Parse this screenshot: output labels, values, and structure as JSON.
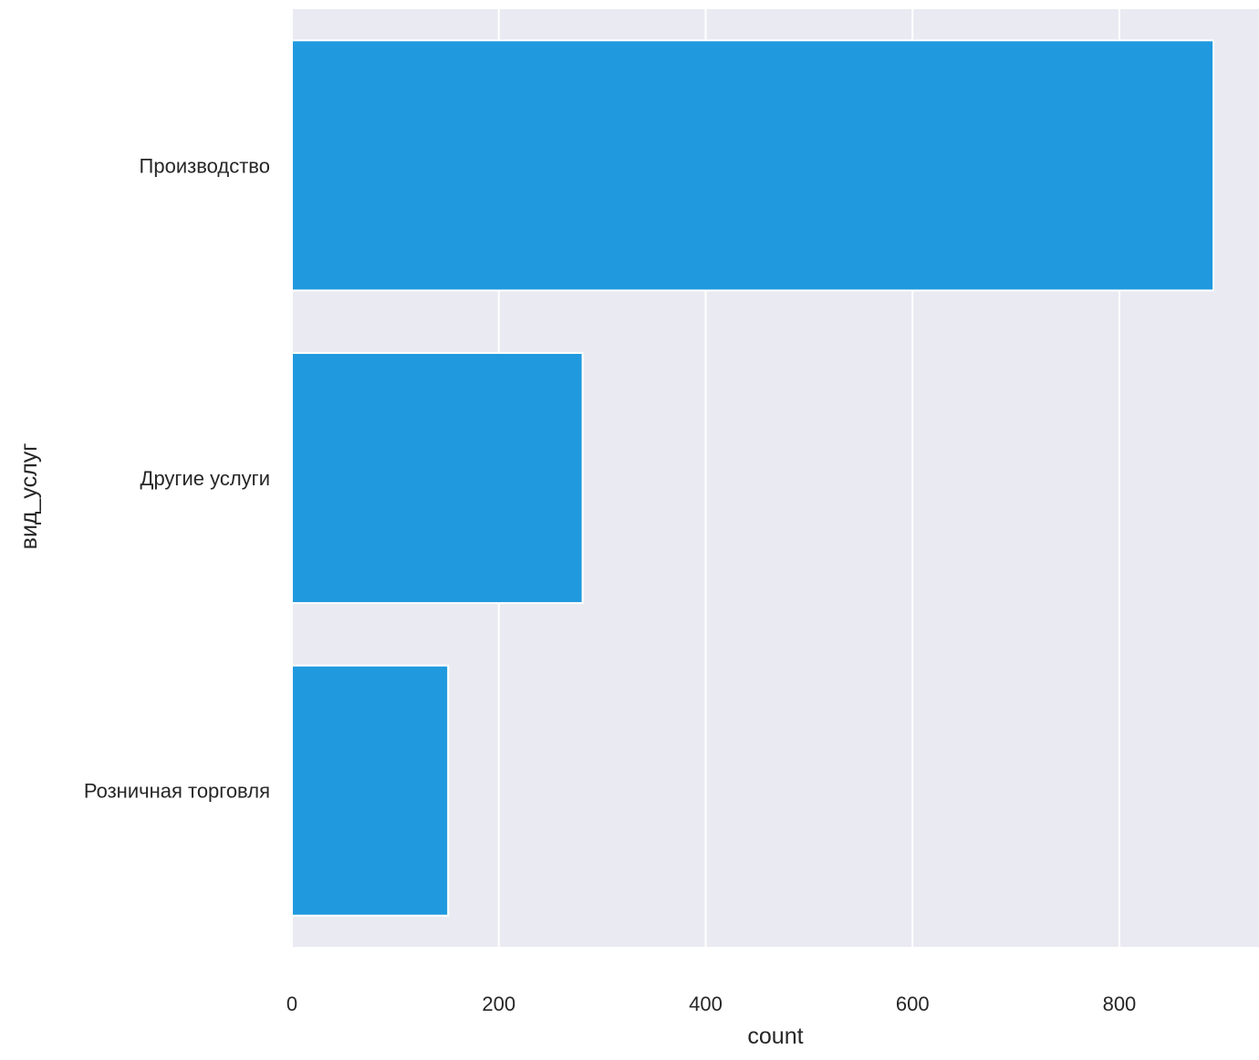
{
  "chart_data": {
    "type": "bar",
    "orientation": "horizontal",
    "title": "",
    "xlabel": "count",
    "ylabel": "вид_услуг",
    "categories": [
      "Производство",
      "Другие услуги",
      "Розничная торговля"
    ],
    "values": [
      891,
      281,
      151
    ],
    "xlim": [
      0,
      935
    ],
    "xticks": [
      0,
      200,
      400,
      600,
      800
    ],
    "grid": true,
    "legend": "none",
    "colors": {
      "bar": "#2099de",
      "background": "#eaeaf2",
      "grid": "#ffffff",
      "text": "#262626"
    }
  }
}
